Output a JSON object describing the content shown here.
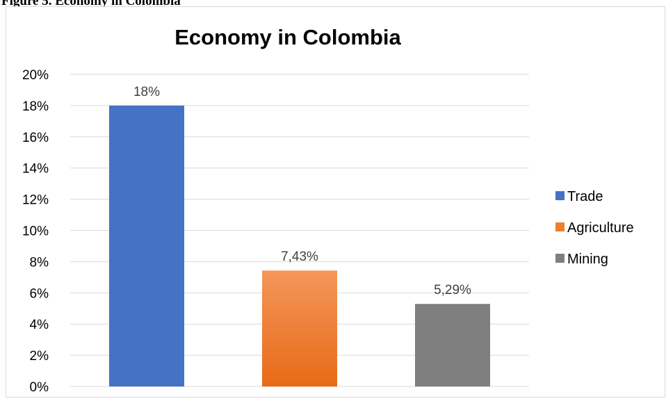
{
  "caption": "Figure 5. Economy in Colombia",
  "chart_data": {
    "type": "bar",
    "title": "Economy in Colombia",
    "xlabel": "",
    "ylabel": "",
    "ylim": [
      0,
      20
    ],
    "y_ticks": [
      "0%",
      "2%",
      "4%",
      "6%",
      "8%",
      "10%",
      "12%",
      "14%",
      "16%",
      "18%",
      "20%"
    ],
    "grid": true,
    "legend_position": "right",
    "series": [
      {
        "name": "Trade",
        "value": 18,
        "label": "18%",
        "color": "#4472c4"
      },
      {
        "name": "Agriculture",
        "value": 7.43,
        "label": "7,43%",
        "color": "#ed7d31"
      },
      {
        "name": "Mining",
        "value": 5.29,
        "label": "5,29%",
        "color": "#7f7f7f"
      }
    ]
  }
}
